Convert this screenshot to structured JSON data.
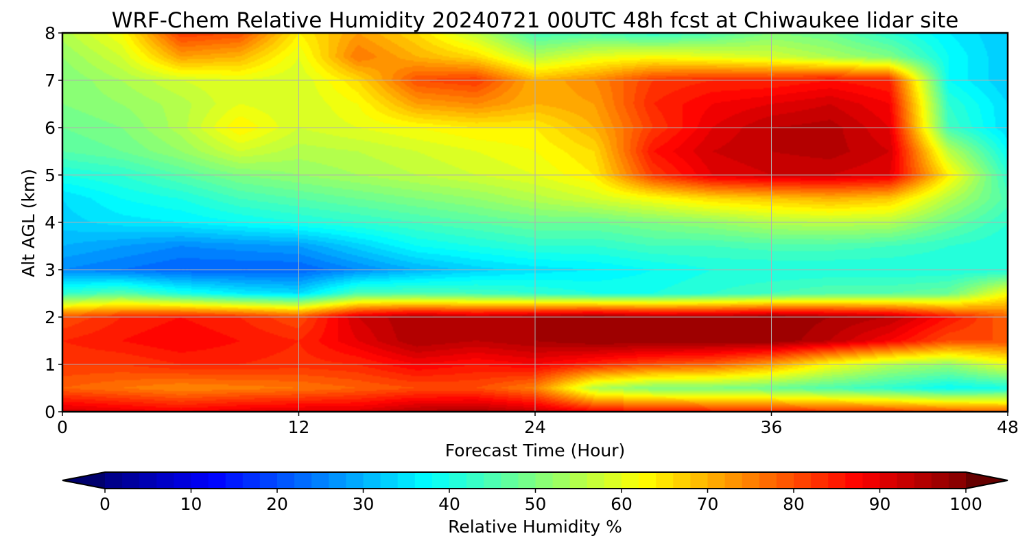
{
  "chart_data": {
    "type": "heatmap",
    "title": "WRF-Chem Relative Humidity 20240721 00UTC 48h fcst at Chiwaukee lidar site",
    "xlabel": "Forecast Time (Hour)",
    "ylabel": "Alt AGL (km)",
    "xlim": [
      0,
      48
    ],
    "ylim": [
      0,
      8
    ],
    "x_ticks": [
      "0",
      "12",
      "24",
      "36",
      "48"
    ],
    "y_ticks": [
      "0",
      "1",
      "2",
      "3",
      "4",
      "5",
      "6",
      "7",
      "8"
    ],
    "grid": true,
    "x": [
      0,
      3,
      6,
      9,
      12,
      15,
      18,
      21,
      24,
      27,
      30,
      33,
      36,
      39,
      42,
      45,
      48
    ],
    "y": [
      0,
      0.5,
      1,
      1.5,
      2,
      2.5,
      3,
      3.5,
      4,
      4.5,
      5,
      5.5,
      6,
      6.5,
      7,
      7.5,
      8
    ],
    "z": [
      [
        92,
        90,
        88,
        90,
        91,
        91,
        95,
        96,
        93,
        88,
        86,
        85,
        84,
        83,
        82,
        80,
        78
      ],
      [
        78,
        76,
        74,
        75,
        76,
        78,
        80,
        80,
        75,
        55,
        50,
        50,
        48,
        45,
        42,
        38,
        40
      ],
      [
        82,
        82,
        84,
        84,
        83,
        84,
        88,
        86,
        88,
        84,
        80,
        78,
        72,
        62,
        55,
        52,
        60
      ],
      [
        84,
        86,
        88,
        86,
        84,
        90,
        96,
        94,
        96,
        98,
        98,
        98,
        98,
        94,
        88,
        80,
        80
      ],
      [
        80,
        84,
        86,
        84,
        80,
        92,
        96,
        94,
        96,
        98,
        96,
        96,
        98,
        96,
        94,
        86,
        78
      ],
      [
        42,
        46,
        40,
        36,
        34,
        45,
        45,
        44,
        42,
        40,
        40,
        42,
        44,
        46,
        46,
        48,
        62
      ],
      [
        26,
        24,
        22,
        22,
        22,
        26,
        30,
        33,
        35,
        36,
        38,
        40,
        40,
        40,
        40,
        40,
        40
      ],
      [
        30,
        28,
        26,
        27,
        28,
        33,
        38,
        40,
        42,
        42,
        44,
        44,
        45,
        45,
        44,
        42,
        40
      ],
      [
        33,
        35,
        36,
        38,
        40,
        42,
        44,
        46,
        48,
        48,
        50,
        52,
        55,
        56,
        55,
        48,
        42
      ],
      [
        34,
        38,
        40,
        44,
        46,
        48,
        50,
        52,
        55,
        58,
        62,
        66,
        68,
        70,
        68,
        55,
        45
      ],
      [
        40,
        42,
        46,
        50,
        52,
        54,
        56,
        58,
        60,
        64,
        82,
        90,
        92,
        92,
        90,
        64,
        42
      ],
      [
        46,
        48,
        52,
        58,
        55,
        56,
        58,
        60,
        62,
        66,
        86,
        92,
        94,
        95,
        92,
        56,
        38
      ],
      [
        48,
        50,
        55,
        64,
        58,
        60,
        62,
        64,
        64,
        70,
        82,
        90,
        94,
        95,
        90,
        44,
        34
      ],
      [
        50,
        52,
        55,
        60,
        58,
        62,
        72,
        74,
        70,
        72,
        84,
        88,
        90,
        92,
        88,
        42,
        34
      ],
      [
        50,
        54,
        58,
        60,
        58,
        66,
        80,
        82,
        70,
        74,
        82,
        84,
        84,
        86,
        84,
        38,
        32
      ],
      [
        52,
        58,
        72,
        70,
        60,
        76,
        70,
        66,
        55,
        60,
        62,
        60,
        58,
        54,
        50,
        38,
        32
      ],
      [
        55,
        62,
        82,
        80,
        64,
        72,
        66,
        56,
        44,
        45,
        42,
        45,
        50,
        48,
        42,
        36,
        32
      ]
    ],
    "colorbar": {
      "label": "Relative Humidity %",
      "min": 0,
      "max": 100,
      "ticks": [
        "0",
        "10",
        "20",
        "30",
        "40",
        "50",
        "60",
        "70",
        "80",
        "90",
        "100"
      ],
      "colormap": "jet",
      "extend": "both"
    }
  }
}
